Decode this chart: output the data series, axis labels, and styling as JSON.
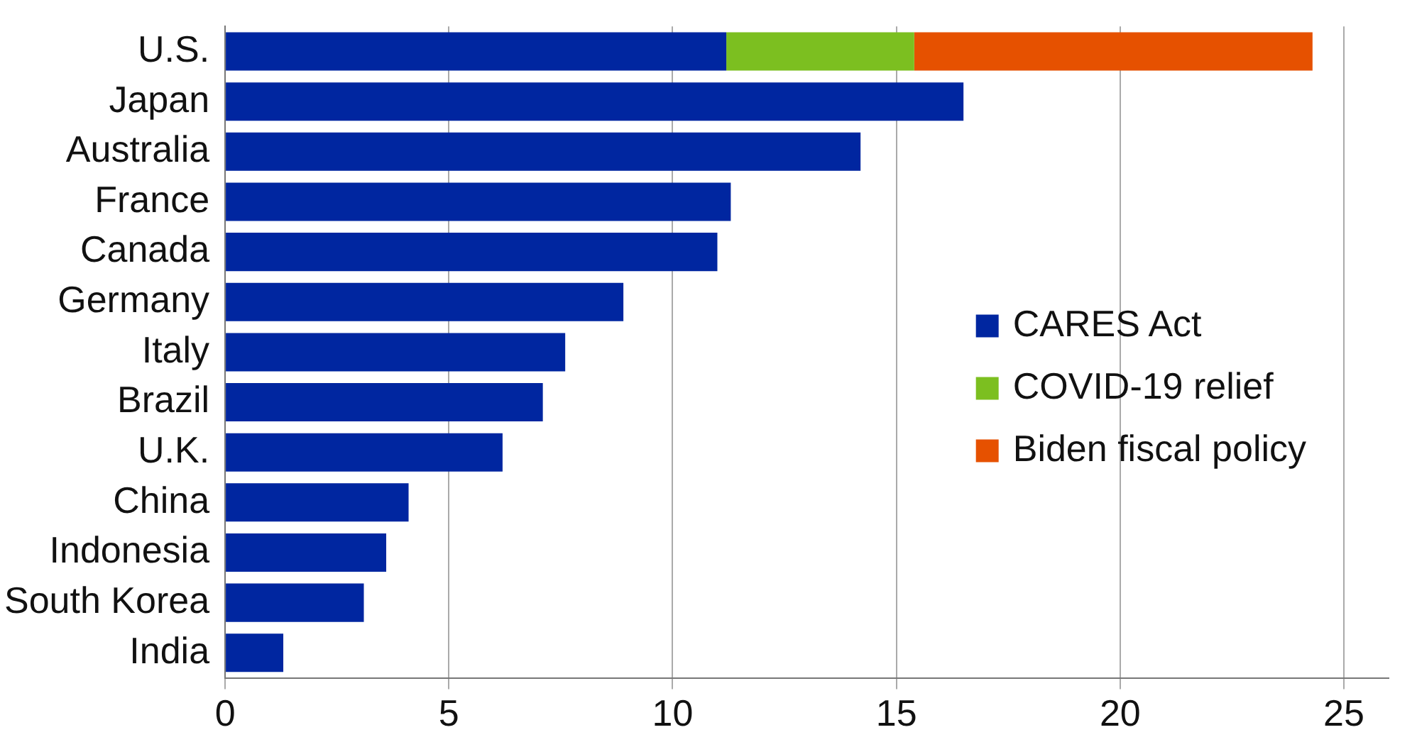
{
  "chart_data": {
    "type": "bar",
    "orientation": "horizontal",
    "stacked": true,
    "categories": [
      "U.S.",
      "Japan",
      "Australia",
      "France",
      "Canada",
      "Germany",
      "Italy",
      "Brazil",
      "U.K.",
      "China",
      "Indonesia",
      "South Korea",
      "India"
    ],
    "series": [
      {
        "name": "CARES Act",
        "color": "#0026a0",
        "values": [
          11.2,
          16.5,
          14.2,
          11.3,
          11.0,
          8.9,
          7.6,
          7.1,
          6.2,
          4.1,
          3.6,
          3.1,
          1.3
        ]
      },
      {
        "name": "COVID-19 relief",
        "color": "#7cbf20",
        "values": [
          4.2,
          null,
          null,
          null,
          null,
          null,
          null,
          null,
          null,
          null,
          null,
          null,
          null
        ]
      },
      {
        "name": "Biden fiscal policy",
        "color": "#e65100",
        "values": [
          8.9,
          null,
          null,
          null,
          null,
          null,
          null,
          null,
          null,
          null,
          null,
          null,
          null
        ]
      }
    ],
    "xlim": [
      0,
      26
    ],
    "xticks": [
      0,
      5,
      10,
      15,
      20,
      25
    ],
    "grid": "x",
    "legend": "bottom right"
  }
}
